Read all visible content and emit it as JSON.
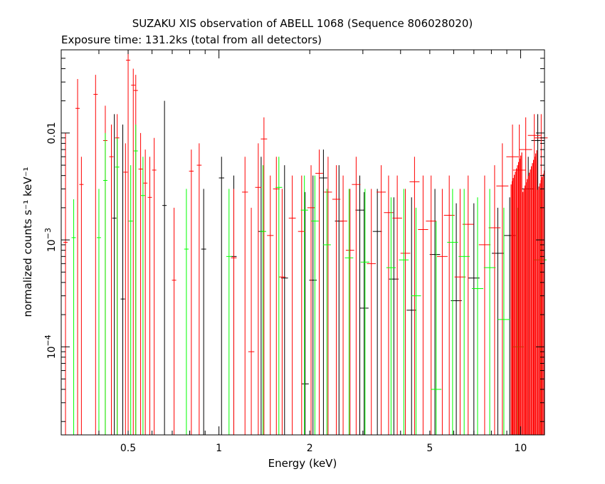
{
  "chart_data": {
    "type": "scatter",
    "title": "SUZAKU XIS observation of ABELL 1068 (Sequence 806028020)",
    "subtitle": "Exposure time: 131.2ks (total from all detectors)",
    "xlabel": "Energy (keV)",
    "ylabel": "normalized counts s⁻¹ keV⁻¹",
    "xscale": "log",
    "yscale": "log",
    "xlim": [
      0.3,
      12
    ],
    "ylim": [
      1.5e-05,
      0.06
    ],
    "grid": false,
    "legend": "none",
    "x_ticks": [
      {
        "value": 0.5,
        "label": "0.5"
      },
      {
        "value": 1,
        "label": "1"
      },
      {
        "value": 2,
        "label": "2"
      },
      {
        "value": 5,
        "label": "5"
      },
      {
        "value": 10,
        "label": "10"
      }
    ],
    "y_ticks": [
      {
        "value": 0.0001,
        "label": "10",
        "exp": "−4"
      },
      {
        "value": 0.001,
        "label": "10",
        "exp": "−3"
      },
      {
        "value": 0.01,
        "label": "0.01",
        "exp": ""
      }
    ],
    "series": [
      {
        "color": "#000000",
        "points": [
          [
            0.45,
            0.0016,
            0.015
          ],
          [
            0.48,
            0.00028,
            0.012
          ],
          [
            0.66,
            0.0021,
            0.02
          ],
          [
            0.89,
            0.00082,
            0.003
          ],
          [
            1.02,
            0.0038,
            0.006
          ],
          [
            1.12,
            0.0007,
            0.004
          ],
          [
            1.38,
            0.0012,
            0.006
          ],
          [
            1.65,
            0.00044,
            0.005
          ],
          [
            1.93,
            4.5e-05,
            0.0028
          ],
          [
            2.05,
            0.00042,
            0.004
          ],
          [
            2.22,
            0.0038,
            0.007
          ],
          [
            2.5,
            0.0015,
            0.005
          ],
          [
            2.93,
            0.0019,
            0.004
          ],
          [
            3.03,
            0.00023,
            0.0028
          ],
          [
            3.35,
            0.0012,
            0.003
          ],
          [
            3.8,
            0.00043,
            0.0025
          ],
          [
            4.35,
            0.00022,
            0.0025
          ],
          [
            5.2,
            0.00073,
            0.003
          ],
          [
            6.12,
            0.00027,
            0.0022
          ],
          [
            7.0,
            0.00044,
            0.0022
          ],
          [
            8.4,
            0.00075,
            0.002
          ],
          [
            9.2,
            0.0011,
            0.0025
          ],
          [
            10.6,
            0.003,
            0.006
          ],
          [
            11.4,
            0.0085,
            0.015
          ]
        ]
      },
      {
        "color": "#ff0000",
        "points": [
          [
            0.31,
            0.00095,
            0.01
          ],
          [
            0.34,
            0.017,
            0.032
          ],
          [
            0.35,
            0.0033,
            0.006
          ],
          [
            0.39,
            0.023,
            0.035
          ],
          [
            0.42,
            0.0085,
            0.018
          ],
          [
            0.44,
            0.006,
            0.012
          ],
          [
            0.46,
            0.009,
            0.015
          ],
          [
            0.49,
            0.0043,
            0.008
          ],
          [
            0.5,
            0.048,
            0.06
          ],
          [
            0.52,
            0.028,
            0.04
          ],
          [
            0.53,
            0.025,
            0.035
          ],
          [
            0.55,
            0.0046,
            0.01
          ],
          [
            0.57,
            0.0034,
            0.007
          ],
          [
            0.59,
            0.0025,
            0.006
          ],
          [
            0.61,
            0.0045,
            0.009
          ],
          [
            0.71,
            0.00042,
            0.002
          ],
          [
            0.81,
            0.0044,
            0.007
          ],
          [
            0.86,
            0.005,
            0.008
          ],
          [
            1.12,
            0.00068,
            0.003
          ],
          [
            1.22,
            0.0028,
            0.006
          ],
          [
            1.28,
            9e-05,
            0.002
          ],
          [
            1.35,
            0.0031,
            0.008
          ],
          [
            1.41,
            0.0088,
            0.014
          ],
          [
            1.48,
            0.0011,
            0.004
          ],
          [
            1.55,
            0.003,
            0.006
          ],
          [
            1.62,
            0.00045,
            0.003
          ],
          [
            1.75,
            0.0016,
            0.004
          ],
          [
            1.88,
            0.0012,
            0.004
          ],
          [
            2.02,
            0.002,
            0.005
          ],
          [
            2.15,
            0.0042,
            0.007
          ],
          [
            2.3,
            0.0028,
            0.006
          ],
          [
            2.45,
            0.0024,
            0.005
          ],
          [
            2.58,
            0.0015,
            0.004
          ],
          [
            2.72,
            0.0008,
            0.003
          ],
          [
            2.85,
            0.0033,
            0.006
          ],
          [
            3.2,
            0.0006,
            0.003
          ],
          [
            3.45,
            0.0028,
            0.005
          ],
          [
            3.65,
            0.0018,
            0.004
          ],
          [
            3.9,
            0.0016,
            0.004
          ],
          [
            4.15,
            0.00075,
            0.003
          ],
          [
            4.45,
            0.0035,
            0.006
          ],
          [
            4.75,
            0.00125,
            0.004
          ],
          [
            5.05,
            0.0015,
            0.004
          ],
          [
            5.5,
            0.0007,
            0.003
          ],
          [
            5.8,
            0.0017,
            0.004
          ],
          [
            6.3,
            0.00045,
            0.003
          ],
          [
            6.7,
            0.0014,
            0.004
          ],
          [
            7.6,
            0.0009,
            0.004
          ],
          [
            8.2,
            0.0013,
            0.005
          ],
          [
            8.7,
            0.0032,
            0.008
          ],
          [
            9.4,
            0.006,
            0.012
          ],
          [
            9.9,
            0.0045,
            0.012
          ],
          [
            10.4,
            0.007,
            0.014
          ],
          [
            11.1,
            0.0095,
            0.015
          ],
          [
            11.7,
            0.009,
            0.015
          ]
        ]
      },
      {
        "color": "#00ff00",
        "points": [
          [
            0.33,
            0.00105,
            0.0024
          ],
          [
            0.4,
            0.00105,
            0.003
          ],
          [
            0.42,
            0.0036,
            0.01
          ],
          [
            0.46,
            0.0048,
            0.009
          ],
          [
            0.51,
            0.0015,
            0.005
          ],
          [
            0.53,
            0.0068,
            0.012
          ],
          [
            0.56,
            0.0026,
            0.006
          ],
          [
            0.78,
            0.00082,
            0.003
          ],
          [
            1.08,
            0.0007,
            0.003
          ],
          [
            1.4,
            0.0012,
            0.005
          ],
          [
            1.58,
            0.0031,
            0.006
          ],
          [
            1.92,
            0.0019,
            0.004
          ],
          [
            2.08,
            0.0015,
            0.004
          ],
          [
            2.28,
            0.0009,
            0.003
          ],
          [
            2.7,
            0.00068,
            0.003
          ],
          [
            3.05,
            0.00062,
            0.003
          ],
          [
            3.72,
            0.00055,
            0.0025
          ],
          [
            4.1,
            0.00065,
            0.003
          ],
          [
            4.5,
            0.0003,
            0.002
          ],
          [
            5.25,
            4e-05,
            0.0015
          ],
          [
            5.95,
            0.00095,
            0.003
          ],
          [
            6.5,
            0.0007,
            0.003
          ],
          [
            7.2,
            0.00035,
            0.0025
          ],
          [
            7.9,
            0.00055,
            0.003
          ],
          [
            8.8,
            0.00018,
            0.002
          ],
          [
            9.8,
            0.0001,
            0.002
          ],
          [
            11.6,
            0.00065,
            0.003
          ]
        ]
      }
    ]
  }
}
